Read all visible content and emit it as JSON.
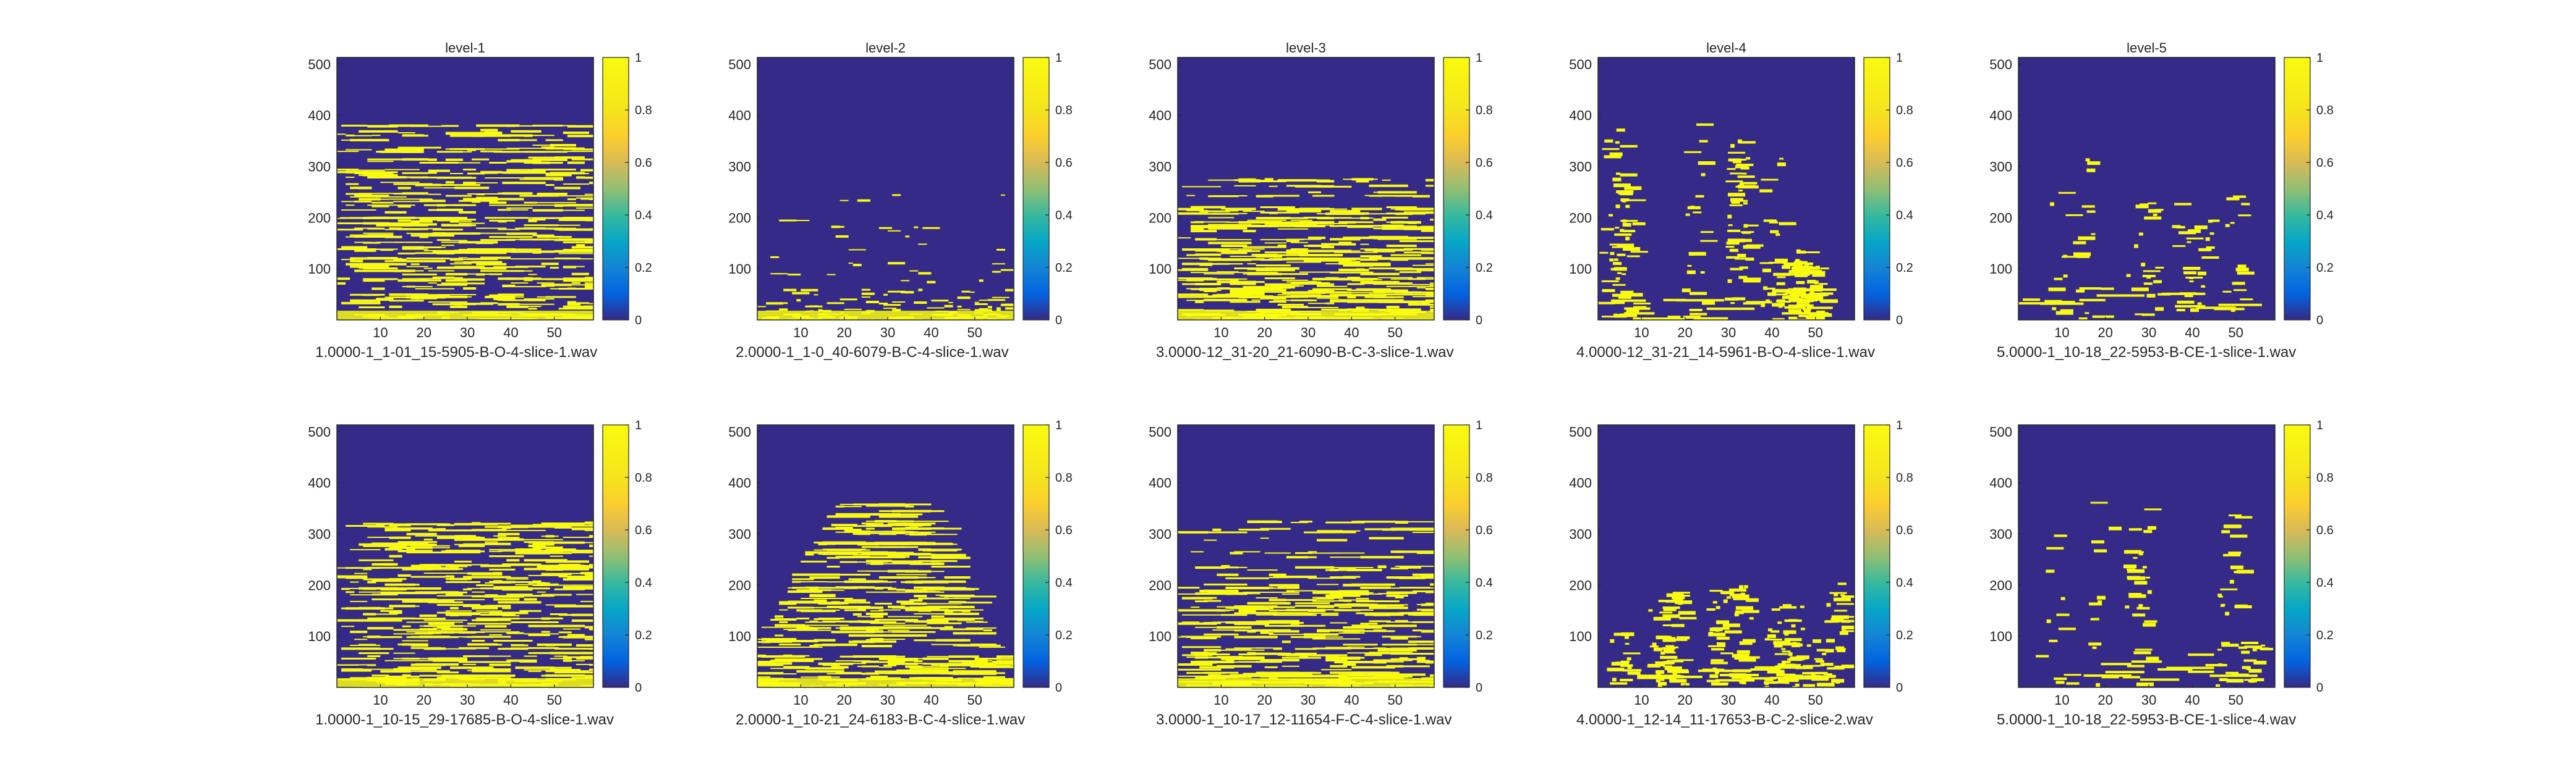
{
  "figure": {
    "colors": {
      "background": "#352a87",
      "foreground": "#f9fb0e",
      "axis": "#262626"
    },
    "colormap": "parula",
    "colorbar_ticks": [
      "0",
      "0.2",
      "0.4",
      "0.6",
      "0.8",
      "1"
    ],
    "x_ticks": [
      "10",
      "20",
      "30",
      "40",
      "50"
    ],
    "y_ticks": [
      "100",
      "200",
      "300",
      "400",
      "500"
    ]
  },
  "chart_data": [
    {
      "type": "heatmap",
      "title": "level-1",
      "xlabel": "1.0000-1_1-01_15-5905-B-O-4-slice-1.wav",
      "xlim": [
        0,
        59
      ],
      "ylim": [
        0,
        513
      ],
      "clim": [
        0,
        1
      ],
      "pattern": "dense-low",
      "pattern_ceiling": 380
    },
    {
      "type": "heatmap",
      "title": "level-2",
      "xlabel": "2.0000-1_1-0_40-6079-B-C-4-slice-1.wav",
      "xlim": [
        0,
        59
      ],
      "ylim": [
        0,
        513
      ],
      "clim": [
        0,
        1
      ],
      "pattern": "sparse-low",
      "pattern_ceiling": 260
    },
    {
      "type": "heatmap",
      "title": "level-3",
      "xlabel": "3.0000-12_31-20_21-6090-B-C-3-slice-1.wav",
      "xlim": [
        0,
        59
      ],
      "ylim": [
        0,
        513
      ],
      "clim": [
        0,
        1
      ],
      "pattern": "dense-mid",
      "pattern_ceiling": 280
    },
    {
      "type": "heatmap",
      "title": "level-4",
      "xlabel": "4.0000-12_31-21_14-5961-B-O-4-slice-1.wav",
      "xlim": [
        0,
        59
      ],
      "ylim": [
        0,
        513
      ],
      "clim": [
        0,
        1
      ],
      "pattern": "blobs",
      "pattern_ceiling": 420
    },
    {
      "type": "heatmap",
      "title": "level-5",
      "xlabel": "5.0000-1_10-18_22-5953-B-CE-1-slice-1.wav",
      "xlim": [
        0,
        59
      ],
      "ylim": [
        0,
        513
      ],
      "clim": [
        0,
        1
      ],
      "pattern": "sparse-blobs",
      "pattern_ceiling": 430
    },
    {
      "type": "heatmap",
      "title": "",
      "xlabel": "1.0000-1_10-15_29-17685-B-O-4-slice-1.wav",
      "xlim": [
        0,
        59
      ],
      "ylim": [
        0,
        513
      ],
      "clim": [
        0,
        1
      ],
      "pattern": "dense-low",
      "pattern_ceiling": 340
    },
    {
      "type": "heatmap",
      "title": "",
      "xlabel": "2.0000-1_10-21_24-6183-B-C-4-slice-1.wav",
      "xlim": [
        0,
        59
      ],
      "ylim": [
        0,
        513
      ],
      "clim": [
        0,
        1
      ],
      "pattern": "dense-peak",
      "pattern_ceiling": 360
    },
    {
      "type": "heatmap",
      "title": "",
      "xlabel": "3.0000-1_10-17_12-11654-F-C-4-slice-1.wav",
      "xlim": [
        0,
        59
      ],
      "ylim": [
        0,
        513
      ],
      "clim": [
        0,
        1
      ],
      "pattern": "dense-mid",
      "pattern_ceiling": 330
    },
    {
      "type": "heatmap",
      "title": "",
      "xlabel": "4.0000-1_12-14_11-17653-B-C-2-slice-2.wav",
      "xlim": [
        0,
        59
      ],
      "ylim": [
        0,
        513
      ],
      "clim": [
        0,
        1
      ],
      "pattern": "blobs-low",
      "pattern_ceiling": 260
    },
    {
      "type": "heatmap",
      "title": "",
      "xlabel": "5.0000-1_10-18_22-5953-B-CE-1-slice-4.wav",
      "xlim": [
        0,
        59
      ],
      "ylim": [
        0,
        513
      ],
      "clim": [
        0,
        1
      ],
      "pattern": "sparse-blobs",
      "pattern_ceiling": 400
    }
  ]
}
